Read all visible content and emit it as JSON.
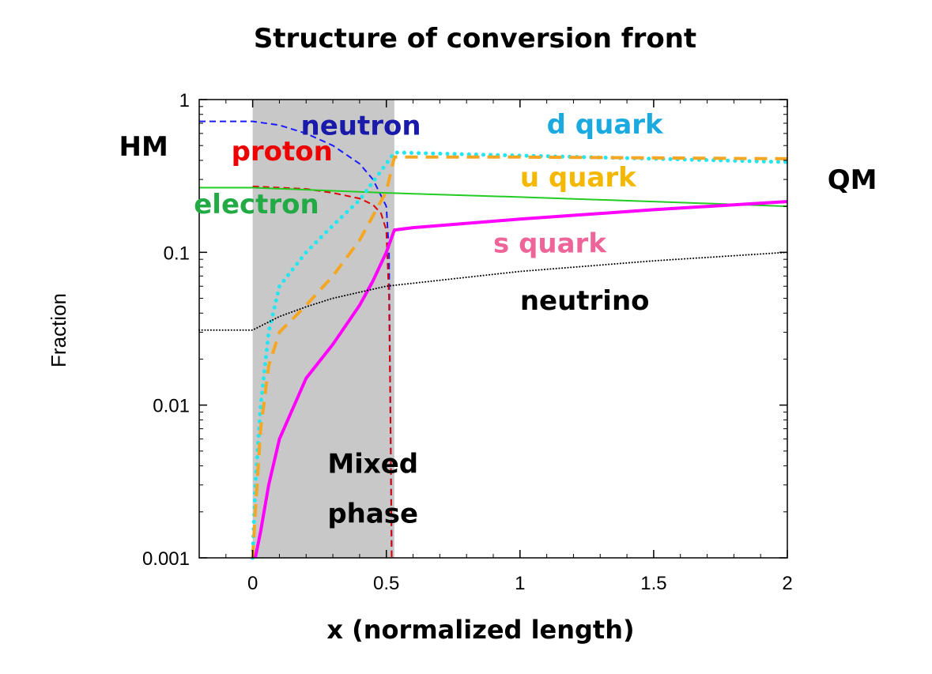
{
  "chart_data": {
    "type": "line",
    "title": "Structure of conversion front",
    "xlabel": "x (normalized length)",
    "ylabel": "Fraction",
    "xlim": [
      -0.2,
      2.0
    ],
    "ylim": [
      0.001,
      1
    ],
    "yscale": "log",
    "grid": false,
    "legend": "none",
    "x_ticks": [
      {
        "value": 0,
        "label": "0"
      },
      {
        "value": 0.5,
        "label": "0.5"
      },
      {
        "value": 1,
        "label": "1"
      },
      {
        "value": 1.5,
        "label": "1.5"
      },
      {
        "value": 2,
        "label": "2"
      }
    ],
    "y_ticks": [
      {
        "value": 0.001,
        "label": "0.001"
      },
      {
        "value": 0.01,
        "label": "0.01"
      },
      {
        "value": 0.1,
        "label": "0.1"
      },
      {
        "value": 1,
        "label": "1"
      }
    ],
    "shaded_region": {
      "x": [
        0,
        0.53
      ],
      "color": "#c8c8c8"
    },
    "series": [
      {
        "name": "neutron",
        "color": "#1a1aff",
        "style": "dashed",
        "width": 2,
        "points": [
          [
            -0.2,
            0.72
          ],
          [
            0,
            0.72
          ],
          [
            0.1,
            0.68
          ],
          [
            0.2,
            0.6
          ],
          [
            0.3,
            0.5
          ],
          [
            0.4,
            0.38
          ],
          [
            0.45,
            0.3
          ],
          [
            0.5,
            0.2
          ],
          [
            0.51,
            0.1
          ],
          [
            0.515,
            0.01
          ],
          [
            0.52,
            0.001
          ]
        ]
      },
      {
        "name": "proton",
        "color": "#dd0000",
        "style": "dashed",
        "width": 2,
        "points": [
          [
            0,
            0.27
          ],
          [
            0.1,
            0.265
          ],
          [
            0.2,
            0.26
          ],
          [
            0.3,
            0.245
          ],
          [
            0.4,
            0.225
          ],
          [
            0.45,
            0.205
          ],
          [
            0.48,
            0.18
          ],
          [
            0.5,
            0.14
          ],
          [
            0.51,
            0.05
          ],
          [
            0.515,
            0.01
          ],
          [
            0.52,
            0.001
          ]
        ]
      },
      {
        "name": "electron",
        "color": "#22cc22",
        "style": "solid",
        "width": 2,
        "points": [
          [
            -0.2,
            0.265
          ],
          [
            0,
            0.265
          ],
          [
            0.5,
            0.245
          ],
          [
            1,
            0.23
          ],
          [
            1.5,
            0.215
          ],
          [
            2,
            0.2
          ]
        ]
      },
      {
        "name": "d quark",
        "color": "#22e6f0",
        "style": "dotted",
        "width": 5,
        "points": [
          [
            0,
            0.001
          ],
          [
            0.01,
            0.003
          ],
          [
            0.03,
            0.01
          ],
          [
            0.06,
            0.03
          ],
          [
            0.1,
            0.06
          ],
          [
            0.2,
            0.1
          ],
          [
            0.3,
            0.15
          ],
          [
            0.4,
            0.22
          ],
          [
            0.5,
            0.38
          ],
          [
            0.53,
            0.45
          ],
          [
            1,
            0.43
          ],
          [
            1.5,
            0.41
          ],
          [
            2,
            0.39
          ]
        ]
      },
      {
        "name": "u quark",
        "color": "#f5a623",
        "style": "dashed",
        "width": 4,
        "points": [
          [
            0,
            0.001
          ],
          [
            0.01,
            0.002
          ],
          [
            0.03,
            0.007
          ],
          [
            0.06,
            0.018
          ],
          [
            0.1,
            0.03
          ],
          [
            0.2,
            0.045
          ],
          [
            0.3,
            0.07
          ],
          [
            0.4,
            0.12
          ],
          [
            0.5,
            0.25
          ],
          [
            0.53,
            0.42
          ],
          [
            1,
            0.42
          ],
          [
            1.5,
            0.415
          ],
          [
            2,
            0.41
          ]
        ]
      },
      {
        "name": "s quark",
        "color": "#ff00ff",
        "style": "solid",
        "width": 4,
        "points": [
          [
            0.01,
            0.001
          ],
          [
            0.03,
            0.0015
          ],
          [
            0.06,
            0.003
          ],
          [
            0.1,
            0.006
          ],
          [
            0.2,
            0.015
          ],
          [
            0.3,
            0.025
          ],
          [
            0.4,
            0.045
          ],
          [
            0.45,
            0.065
          ],
          [
            0.5,
            0.1
          ],
          [
            0.53,
            0.14
          ],
          [
            0.6,
            0.145
          ],
          [
            1,
            0.165
          ],
          [
            1.5,
            0.19
          ],
          [
            2,
            0.215
          ]
        ]
      },
      {
        "name": "neutrino",
        "color": "#000000",
        "style": "dotted",
        "width": 2,
        "points": [
          [
            -0.2,
            0.031
          ],
          [
            0,
            0.031
          ],
          [
            0.1,
            0.038
          ],
          [
            0.2,
            0.044
          ],
          [
            0.3,
            0.05
          ],
          [
            0.5,
            0.06
          ],
          [
            1,
            0.075
          ],
          [
            1.5,
            0.088
          ],
          [
            2,
            0.1
          ]
        ]
      }
    ],
    "annotations": [
      {
        "text": "neutron",
        "x": 0.18,
        "y": 0.59,
        "color": "#1a1aaa"
      },
      {
        "text": "d quark",
        "x": 1.1,
        "y": 0.6,
        "color": "#1aaae0"
      },
      {
        "text": "HM",
        "x": -0.5,
        "y": 0.43,
        "color": "#000000"
      },
      {
        "text": "proton",
        "x": -0.08,
        "y": 0.4,
        "color": "#ee0000"
      },
      {
        "text": "u quark",
        "x": 1.0,
        "y": 0.27,
        "color": "#f5b800"
      },
      {
        "text": "QM",
        "x": 2.15,
        "y": 0.26,
        "color": "#000000"
      },
      {
        "text": "electron",
        "x": -0.22,
        "y": 0.18,
        "color": "#22aa44"
      },
      {
        "text": "s quark",
        "x": 0.9,
        "y": 0.1,
        "color": "#ee6699"
      },
      {
        "text": "neutrino",
        "x": 1.0,
        "y": 0.042,
        "color": "#000000"
      },
      {
        "text": "Mixed",
        "x": 0.28,
        "y": 0.0036,
        "color": "#000000"
      },
      {
        "text": "phase",
        "x": 0.28,
        "y": 0.0017,
        "color": "#000000"
      }
    ]
  }
}
